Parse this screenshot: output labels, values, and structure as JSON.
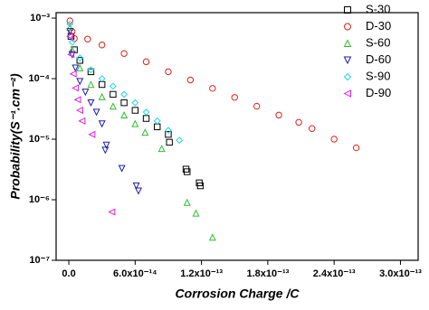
{
  "chart_data": {
    "type": "scatter",
    "x_label": "Corrosion Charge /C",
    "y_label": "Probability(S⁻¹.cm⁻²)",
    "y_scale": "log",
    "xlim": [
      -1.15e-14,
      3.16e-13
    ],
    "ylim": [
      1e-07,
      0.00123
    ],
    "xticks": [
      {
        "value": 0,
        "label": "0.0"
      },
      {
        "value": 6e-14,
        "label": "6.0x10⁻¹⁴"
      },
      {
        "value": 1.2e-13,
        "label": "1.2x10⁻¹³"
      },
      {
        "value": 1.8e-13,
        "label": "1.8x10⁻¹³"
      },
      {
        "value": 2.4e-13,
        "label": "2.4x10⁻¹³"
      },
      {
        "value": 3e-13,
        "label": "3.0x10⁻¹³"
      }
    ],
    "yticks": [
      {
        "value": 1e-07,
        "label": "10⁻⁷"
      },
      {
        "value": 1e-06,
        "label": "10⁻⁶"
      },
      {
        "value": 1e-05,
        "label": "10⁻⁵"
      },
      {
        "value": 0.0001,
        "label": "10⁻⁴"
      },
      {
        "value": 0.001,
        "label": "10⁻³"
      }
    ],
    "legend": "upper right",
    "series": [
      {
        "name": "S-30",
        "color": "#000000",
        "marker": "square",
        "x": [
          2e-15,
          5e-15,
          1e-14,
          2e-14,
          3e-14,
          4e-14,
          5e-14,
          6e-14,
          7e-14,
          8e-14,
          9e-14,
          9.1e-14,
          1.06e-13,
          1.07e-13,
          1.18e-13,
          1.19e-13
        ],
        "values": [
          0.0005,
          0.0003,
          0.0002,
          0.00013,
          8e-05,
          5.5e-05,
          4e-05,
          3e-05,
          2.2e-05,
          1.6e-05,
          1.2e-05,
          8.9e-06,
          3.2e-06,
          2.9e-06,
          1.9e-06,
          1.7e-06
        ]
      },
      {
        "name": "D-30",
        "color": "#e0201b",
        "marker": "circle",
        "x": [
          1e-15,
          3e-15,
          5e-15,
          1.7e-14,
          3e-14,
          5e-14,
          7e-14,
          9e-14,
          1.1e-13,
          1.3e-13,
          1.5e-13,
          1.7e-13,
          1.9e-13,
          2.08e-13,
          2.2e-13,
          2.4e-13,
          2.6e-13
        ],
        "values": [
          0.0009,
          0.0006,
          0.00046,
          0.00045,
          0.00036,
          0.00026,
          0.00019,
          0.00013,
          9.5e-05,
          6.9e-05,
          4.9e-05,
          3.5e-05,
          2.5e-05,
          1.9e-05,
          1.5e-05,
          1e-05,
          7.2e-06
        ]
      },
      {
        "name": "S-60",
        "color": "#2fbf2f",
        "marker": "triangle-up",
        "x": [
          1e-15,
          3e-15,
          1e-14,
          2e-14,
          3e-14,
          4e-14,
          5e-14,
          6e-14,
          6.9e-14,
          8.4e-14,
          1.07e-13,
          1.15e-13,
          1.3e-13
        ],
        "values": [
          0.0007,
          0.0003,
          0.00015,
          8e-05,
          5e-05,
          3.5e-05,
          2.5e-05,
          1.8e-05,
          1.3e-05,
          7e-06,
          9e-07,
          6e-07,
          2.4e-07
        ]
      },
      {
        "name": "D-60",
        "color": "#1c1ca8",
        "marker": "triangle-down",
        "x": [
          1e-15,
          3e-15,
          6e-15,
          1e-14,
          1.5e-14,
          2e-14,
          2.5e-14,
          3e-14,
          3.3e-14,
          3.4e-14,
          4.8e-14,
          6.1e-14,
          6.3e-14
        ],
        "values": [
          0.0006,
          0.00025,
          0.00015,
          9e-05,
          6e-05,
          4e-05,
          2.8e-05,
          1.8e-05,
          6.6e-06,
          8e-06,
          3.3e-06,
          1.7e-06,
          1.4e-06
        ]
      },
      {
        "name": "S-90",
        "color": "#1fd6e6",
        "marker": "diamond",
        "x": [
          1e-15,
          3e-15,
          1e-14,
          2e-14,
          3e-14,
          4e-14,
          5e-14,
          6e-14,
          7e-14,
          8e-14,
          9e-14,
          1e-13
        ],
        "values": [
          0.0008,
          0.0004,
          0.00022,
          0.00014,
          0.0001,
          7.5e-05,
          5.5e-05,
          4e-05,
          2.8e-05,
          2e-05,
          1.4e-05,
          9.6e-06
        ]
      },
      {
        "name": "D-90",
        "color": "#e020e0",
        "marker": "triangle-left",
        "x": [
          1e-15,
          2e-15,
          4e-15,
          6e-15,
          8e-15,
          1e-14,
          1.2e-14,
          2.1e-14,
          3.9e-14
        ],
        "values": [
          0.0005,
          0.00025,
          0.00012,
          7e-05,
          4.5e-05,
          3e-05,
          2e-05,
          1.2e-05,
          6.3e-07
        ]
      }
    ]
  }
}
